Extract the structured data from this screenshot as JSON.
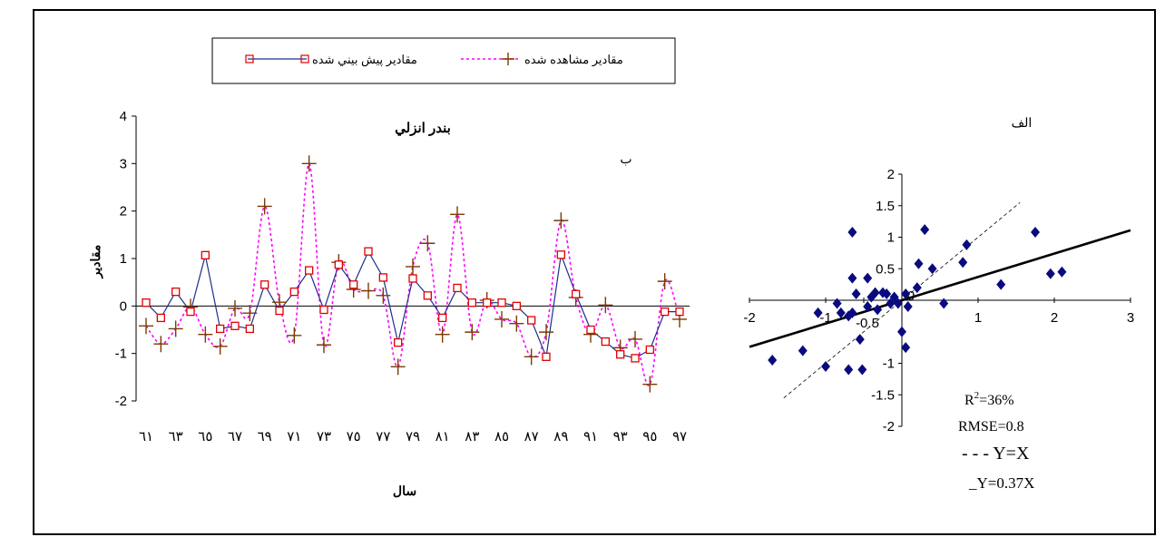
{
  "chart_data": [
    {
      "type": "line",
      "title": "بندر انزلي",
      "subtitle": "ب",
      "xlabel": "سال",
      "ylabel": "مقادير",
      "ylim": [
        -2,
        4
      ],
      "yticks": [
        "-2",
        "-1",
        "0",
        "1",
        "2",
        "3",
        "4"
      ],
      "xtick_labels": [
        "٦١",
        "٦٣",
        "٦٥",
        "٦٧",
        "٦٩",
        "٧١",
        "٧٣",
        "٧٥",
        "٧٧",
        "٧٩",
        "٨١",
        "٨٣",
        "٨٥",
        "٨٧",
        "٨٩",
        "٩١",
        "٩٣",
        "٩٥",
        "٩٧"
      ],
      "x": [
        61,
        62,
        63,
        64,
        65,
        66,
        67,
        68,
        69,
        70,
        71,
        72,
        73,
        74,
        75,
        76,
        77,
        78,
        79,
        80,
        81,
        82,
        83,
        84,
        85,
        86,
        87,
        88,
        89,
        90,
        91,
        92,
        93,
        94,
        95,
        96,
        97
      ],
      "legend": {
        "placement": "top",
        "entries": [
          "مقادير پيش بيني شده",
          "مقادير مشاهده شده"
        ]
      },
      "series": [
        {
          "name": "مقادير پيش بيني شده",
          "color": "#1f2d8c",
          "marker": "square",
          "marker_color": "#e00000",
          "values": [
            0.07,
            -0.25,
            0.3,
            -0.12,
            1.07,
            -0.48,
            -0.42,
            -0.48,
            0.45,
            -0.1,
            0.3,
            0.75,
            -0.08,
            0.87,
            0.45,
            1.15,
            0.6,
            -0.77,
            0.58,
            0.22,
            -0.25,
            0.38,
            0.07,
            0.07,
            0.07,
            0.0,
            -0.3,
            -1.07,
            1.08,
            0.25,
            -0.5,
            -0.75,
            -1.02,
            -1.1,
            -0.92,
            -0.12,
            -0.12
          ]
        },
        {
          "name": "مقادير مشاهده شده",
          "color": "#ff00ff",
          "marker": "plus",
          "marker_color": "#7a3b00",
          "values": [
            -0.42,
            -0.8,
            -0.48,
            -0.02,
            -0.6,
            -0.85,
            -0.05,
            -0.15,
            2.1,
            0.08,
            -0.62,
            3.0,
            -0.82,
            0.92,
            0.35,
            0.32,
            0.22,
            -1.28,
            0.83,
            1.32,
            -0.6,
            1.93,
            -0.55,
            0.12,
            -0.28,
            -0.37,
            -1.07,
            -0.55,
            1.8,
            0.18,
            -0.6,
            0.02,
            -0.88,
            -0.7,
            -1.65,
            0.52,
            -0.28
          ]
        }
      ]
    },
    {
      "type": "scatter",
      "title": "الف",
      "xlim": [
        -2,
        3
      ],
      "ylim": [
        -2,
        2
      ],
      "xticks": [
        "-2",
        "-1",
        "-0.5",
        "0",
        "1",
        "2",
        "3"
      ],
      "yticks": [
        "2",
        "1.5",
        "1",
        "0.5",
        "0",
        "-0.5",
        "-1",
        "-1.5",
        "-2"
      ],
      "marker": "diamond",
      "marker_color": "#0a0a80",
      "points": [
        [
          -1.7,
          -0.95
        ],
        [
          -1.3,
          -0.8
        ],
        [
          -1.1,
          -0.2
        ],
        [
          -1.0,
          -1.05
        ],
        [
          -0.85,
          -0.05
        ],
        [
          -0.8,
          -0.2
        ],
        [
          -0.7,
          -0.25
        ],
        [
          -0.7,
          -1.1
        ],
        [
          -0.65,
          1.08
        ],
        [
          -0.65,
          0.35
        ],
        [
          -0.65,
          -0.2
        ],
        [
          -0.6,
          0.1
        ],
        [
          -0.55,
          -0.62
        ],
        [
          -0.52,
          -1.1
        ],
        [
          -0.45,
          0.35
        ],
        [
          -0.45,
          -0.1
        ],
        [
          -0.4,
          0.05
        ],
        [
          -0.35,
          0.12
        ],
        [
          -0.32,
          -0.15
        ],
        [
          -0.25,
          0.12
        ],
        [
          -0.2,
          0.1
        ],
        [
          -0.15,
          -0.05
        ],
        [
          -0.1,
          0.05
        ],
        [
          -0.05,
          -0.05
        ],
        [
          0.0,
          -0.5
        ],
        [
          0.05,
          0.1
        ],
        [
          0.05,
          -0.75
        ],
        [
          0.08,
          -0.1
        ],
        [
          0.2,
          0.2
        ],
        [
          0.22,
          0.58
        ],
        [
          0.3,
          1.12
        ],
        [
          0.4,
          0.5
        ],
        [
          0.55,
          -0.05
        ],
        [
          0.8,
          0.6
        ],
        [
          0.85,
          0.88
        ],
        [
          1.3,
          0.25
        ],
        [
          1.75,
          1.08
        ],
        [
          1.95,
          0.42
        ],
        [
          2.1,
          0.45
        ]
      ],
      "fit_line": {
        "label": "Y=0.37X",
        "slope": 0.37
      },
      "identity_line": {
        "label": "Y=X"
      },
      "annotations": {
        "r2_base": "R",
        "r2_sup": "2",
        "r2_value": "=36%",
        "rmse": "RMSE=0.8",
        "identity_label": "- - - Y=X",
        "fit_label": "_Y=0.37X"
      }
    }
  ]
}
